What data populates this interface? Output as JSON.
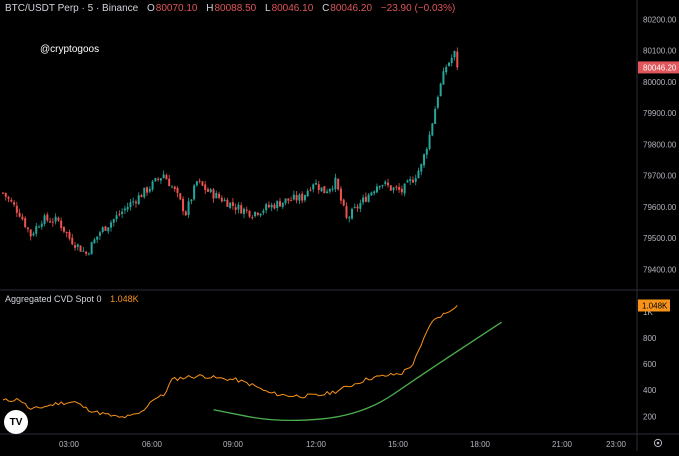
{
  "header": {
    "symbol": "BTC/USDT Perp · 5 · Binance",
    "ohlc": [
      {
        "label": "O",
        "value": "80070.10"
      },
      {
        "label": "H",
        "value": "80088.50"
      },
      {
        "label": "L",
        "value": "80046.10"
      },
      {
        "label": "C",
        "value": "80046.20"
      }
    ],
    "change": "−23.90 (−0.03%)"
  },
  "watermark": "@cryptogoos",
  "indicator": {
    "name": "Aggregated CVD Spot 0",
    "value": "1.048K"
  },
  "logo_text": "TV",
  "colors": {
    "background": "#000000",
    "up": "#26a69a",
    "down": "#ef5350",
    "cvd_line": "#f7931a",
    "annotation_curve": "#4caf50",
    "price_badge": "#e0565b",
    "grid_separator": "#2a2e39"
  },
  "chart_data": [
    {
      "type": "candlestick",
      "title": "BTC/USDT Perp · 5 · Binance",
      "ylim": [
        79350,
        80230
      ],
      "y_ticks": [
        79400,
        79500,
        79600,
        79700,
        79800,
        79900,
        80000,
        80100,
        80200
      ],
      "y_tick_labels": [
        "79400.00",
        "79500.00",
        "79600.00",
        "79700.00",
        "79800.00",
        "79900.00",
        "80000.00",
        "80100.00",
        "80200.00"
      ],
      "last_price_label": "80046.20",
      "last_price": 80046.2,
      "x_ticks": [
        "03:00",
        "06:00",
        "09:00",
        "12:00",
        "15:00",
        "18:00",
        "21:00",
        "23:00"
      ],
      "anchors": [
        {
          "i": 0,
          "p": 79645
        },
        {
          "i": 6,
          "p": 79580
        },
        {
          "i": 10,
          "p": 79510
        },
        {
          "i": 14,
          "p": 79560
        },
        {
          "i": 20,
          "p": 79555
        },
        {
          "i": 24,
          "p": 79500
        },
        {
          "i": 30,
          "p": 79450
        },
        {
          "i": 35,
          "p": 79520
        },
        {
          "i": 40,
          "p": 79560
        },
        {
          "i": 46,
          "p": 79610
        },
        {
          "i": 52,
          "p": 79655
        },
        {
          "i": 58,
          "p": 79705
        },
        {
          "i": 62,
          "p": 79650
        },
        {
          "i": 66,
          "p": 79580
        },
        {
          "i": 70,
          "p": 79680
        },
        {
          "i": 74,
          "p": 79650
        },
        {
          "i": 78,
          "p": 79630
        },
        {
          "i": 84,
          "p": 79600
        },
        {
          "i": 90,
          "p": 79580
        },
        {
          "i": 96,
          "p": 79600
        },
        {
          "i": 102,
          "p": 79620
        },
        {
          "i": 108,
          "p": 79630
        },
        {
          "i": 112,
          "p": 79680
        },
        {
          "i": 116,
          "p": 79650
        },
        {
          "i": 120,
          "p": 79680
        },
        {
          "i": 124,
          "p": 79560
        },
        {
          "i": 128,
          "p": 79600
        },
        {
          "i": 132,
          "p": 79640
        },
        {
          "i": 136,
          "p": 79680
        },
        {
          "i": 140,
          "p": 79660
        },
        {
          "i": 144,
          "p": 79650
        },
        {
          "i": 148,
          "p": 79690
        },
        {
          "i": 151,
          "p": 79730
        },
        {
          "i": 154,
          "p": 79830
        },
        {
          "i": 157,
          "p": 79960
        },
        {
          "i": 160,
          "p": 80050
        },
        {
          "i": 163,
          "p": 80090
        },
        {
          "i": 164,
          "p": 80046
        }
      ],
      "candle_count": 165
    },
    {
      "type": "line",
      "title": "Aggregated CVD Spot 0",
      "series": [
        {
          "name": "Aggregated CVD Spot 0",
          "color": "#f7931a"
        }
      ],
      "ylim": [
        80,
        1090
      ],
      "y_ticks": [
        200,
        400,
        600,
        800,
        1000
      ],
      "y_tick_labels": [
        "200",
        "400",
        "600",
        "800",
        "1K"
      ],
      "last_value_label": "1.048K",
      "last_value": 1048,
      "points": [
        {
          "i": 0,
          "v": 320
        },
        {
          "i": 6,
          "v": 330
        },
        {
          "i": 10,
          "v": 250
        },
        {
          "i": 14,
          "v": 270
        },
        {
          "i": 20,
          "v": 300
        },
        {
          "i": 26,
          "v": 310
        },
        {
          "i": 30,
          "v": 260
        },
        {
          "i": 34,
          "v": 230
        },
        {
          "i": 38,
          "v": 210
        },
        {
          "i": 42,
          "v": 190
        },
        {
          "i": 46,
          "v": 200
        },
        {
          "i": 50,
          "v": 230
        },
        {
          "i": 54,
          "v": 330
        },
        {
          "i": 58,
          "v": 360
        },
        {
          "i": 61,
          "v": 480
        },
        {
          "i": 66,
          "v": 500
        },
        {
          "i": 72,
          "v": 510
        },
        {
          "i": 78,
          "v": 490
        },
        {
          "i": 84,
          "v": 480
        },
        {
          "i": 90,
          "v": 440
        },
        {
          "i": 96,
          "v": 380
        },
        {
          "i": 102,
          "v": 360
        },
        {
          "i": 108,
          "v": 355
        },
        {
          "i": 114,
          "v": 360
        },
        {
          "i": 120,
          "v": 390
        },
        {
          "i": 126,
          "v": 440
        },
        {
          "i": 132,
          "v": 490
        },
        {
          "i": 138,
          "v": 510
        },
        {
          "i": 144,
          "v": 530
        },
        {
          "i": 148,
          "v": 600
        },
        {
          "i": 151,
          "v": 740
        },
        {
          "i": 154,
          "v": 900
        },
        {
          "i": 157,
          "v": 960
        },
        {
          "i": 160,
          "v": 990
        },
        {
          "i": 163,
          "v": 1040
        },
        {
          "i": 164,
          "v": 1048
        }
      ],
      "annotation_curve": [
        {
          "i": 76,
          "v": 250
        },
        {
          "i": 100,
          "v": 150
        },
        {
          "i": 130,
          "v": 210
        },
        {
          "i": 152,
          "v": 530
        },
        {
          "i": 180,
          "v": 920
        }
      ]
    }
  ]
}
